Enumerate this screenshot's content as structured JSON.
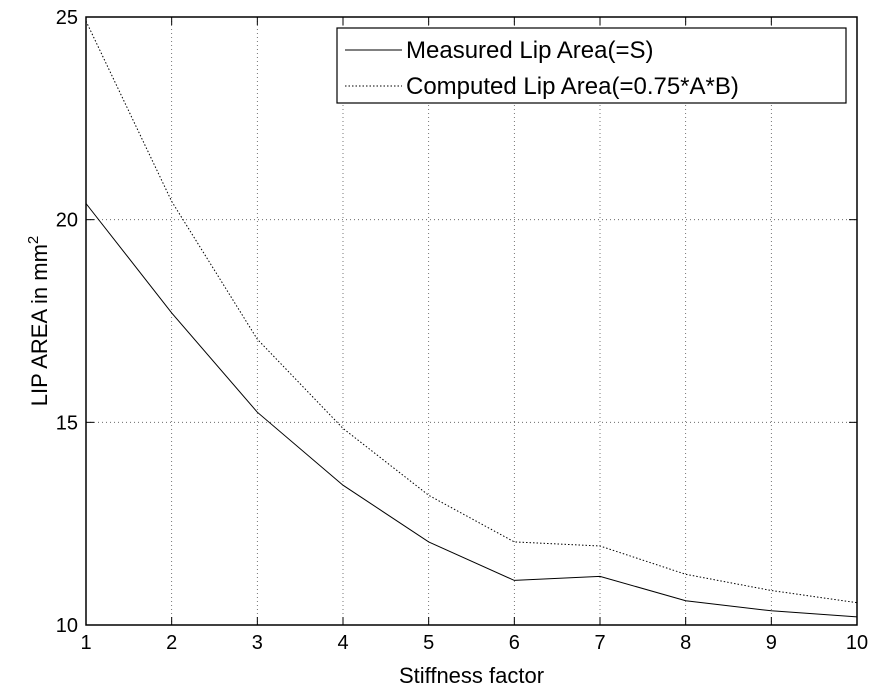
{
  "chart_data": {
    "type": "line",
    "title": "",
    "xlabel": "Stiffness factor",
    "ylabel": "LIP AREA in mm",
    "ylabel_superscript": "2",
    "xlim": [
      1,
      10
    ],
    "ylim": [
      10,
      25
    ],
    "x_ticks": [
      "1",
      "2",
      "3",
      "4",
      "5",
      "6",
      "7",
      "8",
      "9",
      "10"
    ],
    "y_ticks": [
      "10",
      "15",
      "20",
      "25"
    ],
    "grid": true,
    "legend_position": "top-right",
    "x": [
      1,
      2,
      3,
      4,
      5,
      6,
      7,
      8,
      9,
      10
    ],
    "series": [
      {
        "name": "Measured Lip Area(=S)",
        "line_style": "solid",
        "color": "#000000",
        "values": [
          20.4,
          17.7,
          15.25,
          13.45,
          12.05,
          11.1,
          11.2,
          10.6,
          10.35,
          10.2
        ]
      },
      {
        "name": "Computed Lip Area(=0.75*A*B)",
        "line_style": "dotted",
        "color": "#000000",
        "values": [
          24.9,
          20.45,
          17.05,
          14.85,
          13.2,
          12.05,
          11.95,
          11.25,
          10.85,
          10.55
        ]
      }
    ]
  }
}
